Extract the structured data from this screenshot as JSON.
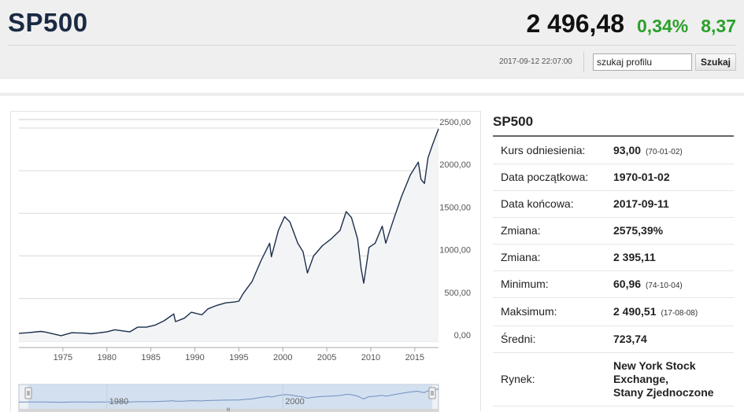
{
  "header": {
    "symbol": "SP500",
    "price": "2 496,48",
    "change_percent": "0,34%",
    "change_value": "8,37",
    "change_color": "#2ca02c",
    "timestamp": "2017-09-12 22:07:00"
  },
  "search": {
    "value": "szukaj profilu",
    "button_label": "Szukaj"
  },
  "panel": {
    "title": "SP500",
    "rows": [
      {
        "label": "Kurs odniesienia:",
        "value": "93,00",
        "sub": "(70-01-02)"
      },
      {
        "label": "Data początkowa:",
        "value": "1970-01-02",
        "sub": ""
      },
      {
        "label": "Data końcowa:",
        "value": "2017-09-11",
        "sub": ""
      },
      {
        "label": "Zmiana:",
        "value": "2575,39%",
        "sub": ""
      },
      {
        "label": "Zmiana:",
        "value": "2 395,11",
        "sub": ""
      },
      {
        "label": "Minimum:",
        "value": "60,96",
        "sub": "(74-10-04)"
      },
      {
        "label": "Maksimum:",
        "value": "2 490,51",
        "sub": "(17-08-08)"
      },
      {
        "label": "Średni:",
        "value": "723,74",
        "sub": ""
      },
      {
        "label": "Rynek:",
        "value_lines": [
          "New York Stock",
          "Exchange,",
          "Stany Zjednoczone"
        ]
      }
    ]
  },
  "chart_data": {
    "type": "area",
    "x_ticks": [
      "1975",
      "1980",
      "1985",
      "1990",
      "1995",
      "2000",
      "2005",
      "2010",
      "2015"
    ],
    "y_ticks": [
      "0,00",
      "500,00",
      "1000,00",
      "1500,00",
      "2000,00",
      "2500,00"
    ],
    "xlim": [
      1970.0,
      2017.7
    ],
    "ylim": [
      0,
      2600
    ],
    "grid": true,
    "line_color": "#1b2e4a",
    "fill_color": "#f3f4f6",
    "x": [
      1970.0,
      1971.0,
      1972.5,
      1973.0,
      1974.8,
      1976.0,
      1977.5,
      1978.2,
      1980.0,
      1980.9,
      1982.6,
      1983.5,
      1984.5,
      1985.5,
      1986.5,
      1987.6,
      1987.8,
      1988.8,
      1989.6,
      1990.8,
      1991.5,
      1992.5,
      1993.5,
      1994.5,
      1995.0,
      1995.5,
      1996.5,
      1997.5,
      1998.5,
      1998.7,
      1999.5,
      2000.2,
      2000.8,
      2001.7,
      2002.3,
      2002.8,
      2003.5,
      2004.5,
      2005.5,
      2006.5,
      2007.2,
      2007.8,
      2008.5,
      2008.9,
      2009.2,
      2009.8,
      2010.5,
      2011.3,
      2011.7,
      2012.5,
      2013.5,
      2014.5,
      2015.4,
      2015.7,
      2016.1,
      2016.5,
      2017.0,
      2017.7
    ],
    "y": [
      93,
      100,
      115,
      108,
      65,
      100,
      95,
      88,
      110,
      135,
      110,
      165,
      165,
      190,
      240,
      320,
      230,
      270,
      340,
      310,
      380,
      420,
      450,
      460,
      470,
      560,
      700,
      940,
      1150,
      990,
      1300,
      1460,
      1400,
      1150,
      1050,
      800,
      1000,
      1120,
      1200,
      1300,
      1520,
      1450,
      1200,
      850,
      680,
      1100,
      1150,
      1350,
      1150,
      1400,
      1700,
      1950,
      2100,
      1900,
      1850,
      2150,
      2300,
      2490
    ]
  },
  "navigator": {
    "x_ticks": [
      "1980",
      "2000"
    ],
    "handle_label": "III"
  }
}
